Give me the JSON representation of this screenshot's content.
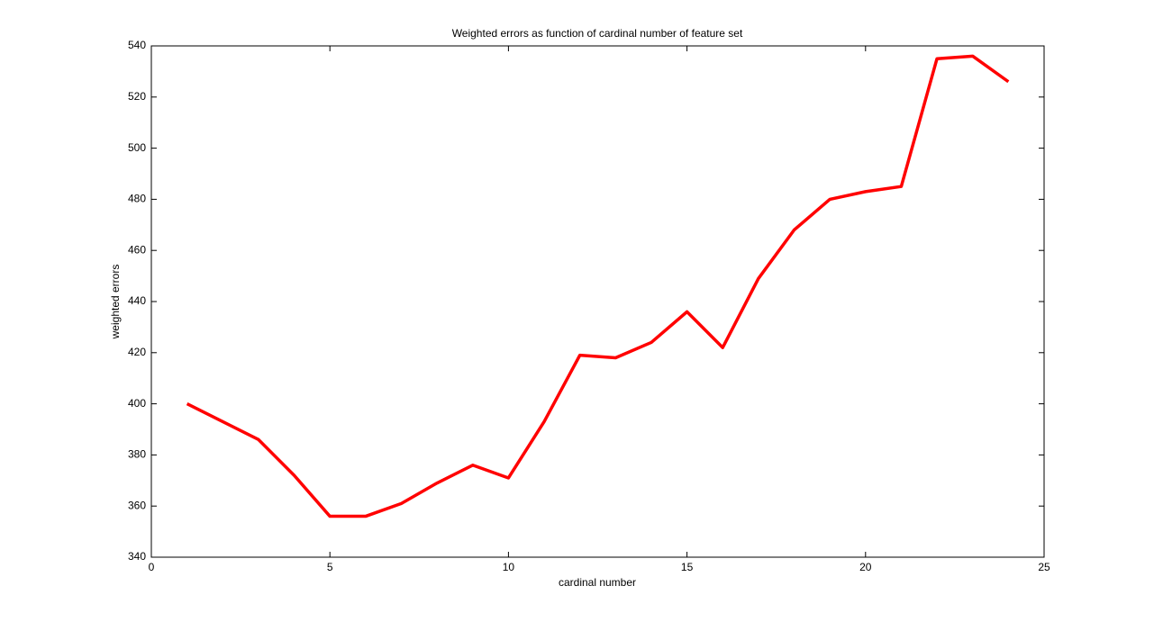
{
  "chart_data": {
    "type": "line",
    "title": "Weighted errors as function of cardinal number of feature set",
    "xlabel": "cardinal number",
    "ylabel": "weighted errors",
    "x": [
      1,
      2,
      3,
      4,
      5,
      6,
      7,
      8,
      9,
      10,
      11,
      12,
      13,
      14,
      15,
      16,
      17,
      18,
      19,
      20,
      21,
      22,
      23,
      24
    ],
    "series": [
      {
        "name": "weighted errors",
        "color": "#ff0000",
        "values": [
          400,
          393,
          386,
          372,
          356,
          356,
          361,
          369,
          376,
          371,
          393,
          419,
          418,
          424,
          436,
          422,
          449,
          468,
          480,
          483,
          485,
          535,
          536,
          526
        ]
      }
    ],
    "xlim": [
      0,
      25
    ],
    "xticks": [
      0,
      5,
      10,
      15,
      20,
      25
    ],
    "ylim": [
      340,
      540
    ],
    "yticks": [
      340,
      360,
      380,
      400,
      420,
      440,
      460,
      480,
      500,
      520,
      540
    ],
    "grid": false
  }
}
